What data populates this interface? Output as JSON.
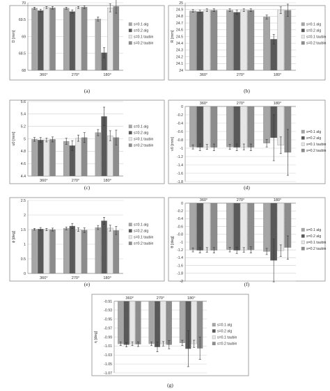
{
  "categories": [
    "360°",
    "270°",
    "180°"
  ],
  "series_names": [
    "s=0.1 alg",
    "s=0.2 alg",
    "s=0.1 taubin",
    "s=0.2 taubin"
  ],
  "series_colors": [
    "#a6a6a6",
    "#595959",
    "#e6e6e6",
    "#8c8c8c"
  ],
  "chart_data": [
    {
      "type": "bar",
      "panel": "(a)",
      "ylabel": "D [mm]",
      "ylim": [
        68,
        70
      ],
      "yticks": [
        68,
        68.5,
        69,
        69.5,
        70
      ],
      "cat_labels_pos": "bottom",
      "series": [
        {
          "name": "s=0.1 alg",
          "values": [
            69.84,
            69.84,
            69.52
          ],
          "errors": [
            0.03,
            0.03,
            0.06
          ]
        },
        {
          "name": "s=0.2 alg",
          "values": [
            69.77,
            69.74,
            68.52
          ],
          "errors": [
            0.04,
            0.05,
            0.15
          ]
        },
        {
          "name": "s=0.1 taubin",
          "values": [
            69.86,
            69.86,
            69.85
          ],
          "errors": [
            0.03,
            0.03,
            0.12
          ]
        },
        {
          "name": "s=0.2 taubin",
          "values": [
            69.85,
            69.87,
            69.89
          ],
          "errors": [
            0.04,
            0.04,
            0.2
          ]
        }
      ]
    },
    {
      "type": "bar",
      "panel": "(b)",
      "ylabel": "R [mm]",
      "ylim": [
        24,
        25
      ],
      "yticks": [
        24,
        24.1,
        24.2,
        24.3,
        24.4,
        24.5,
        24.6,
        24.7,
        24.8,
        24.9,
        25
      ],
      "cat_labels_pos": "bottom",
      "series": [
        {
          "name": "s=0.1 alg",
          "values": [
            24.88,
            24.89,
            24.79
          ],
          "errors": [
            0.02,
            0.02,
            0.03
          ]
        },
        {
          "name": "s=0.2 alg",
          "values": [
            24.87,
            24.86,
            24.46
          ],
          "errors": [
            0.02,
            0.03,
            0.07
          ]
        },
        {
          "name": "s=0.1 taubin",
          "values": [
            24.89,
            24.89,
            24.89
          ],
          "errors": [
            0.02,
            0.02,
            0.05
          ]
        },
        {
          "name": "s=0.2 taubin",
          "values": [
            24.89,
            24.89,
            24.89
          ],
          "errors": [
            0.02,
            0.02,
            0.09
          ]
        }
      ]
    },
    {
      "type": "bar",
      "panel": "(c)",
      "ylabel": "u0 [mm]",
      "ylim": [
        4.4,
        5.6
      ],
      "yticks": [
        4.4,
        4.6,
        4.8,
        5,
        5.2,
        5.4,
        5.6
      ],
      "cat_labels_pos": "bottom",
      "series": [
        {
          "name": "s=0.1 alg",
          "values": [
            4.99,
            4.96,
            5.1
          ],
          "errors": [
            0.03,
            0.05,
            0.05
          ]
        },
        {
          "name": "s=0.2 alg",
          "values": [
            4.98,
            4.89,
            5.36
          ],
          "errors": [
            0.04,
            0.08,
            0.15
          ]
        },
        {
          "name": "s=0.1 taubin",
          "values": [
            4.98,
            5.01,
            5.05
          ],
          "errors": [
            0.03,
            0.05,
            0.08
          ]
        },
        {
          "name": "s=0.2 taubin",
          "values": [
            4.99,
            5.02,
            5.02
          ],
          "errors": [
            0.04,
            0.08,
            0.12
          ]
        }
      ]
    },
    {
      "type": "bar",
      "panel": "(d)",
      "ylabel": "v0 [mm]",
      "ylim": [
        -1.8,
        0
      ],
      "yticks": [
        0,
        -0.2,
        -0.4,
        -0.6,
        -0.8,
        -1,
        -1.2,
        -1.4,
        -1.6,
        -1.8
      ],
      "cat_labels_pos": "top",
      "series": [
        {
          "name": "s=0.1 alg",
          "values": [
            -0.97,
            -0.97,
            -0.88
          ],
          "errors": [
            0.05,
            0.06,
            0.09
          ]
        },
        {
          "name": "s=0.2 alg",
          "values": [
            -0.98,
            -0.98,
            -0.75
          ],
          "errors": [
            0.08,
            0.08,
            0.55
          ]
        },
        {
          "name": "s=0.1 taubin",
          "values": [
            -0.97,
            -0.97,
            -0.93
          ],
          "errors": [
            0.06,
            0.07,
            0.2
          ]
        },
        {
          "name": "s=0.2 taubin",
          "values": [
            -0.98,
            -0.98,
            -1.1
          ],
          "errors": [
            0.08,
            0.08,
            0.55
          ]
        }
      ]
    },
    {
      "type": "bar",
      "panel": "(e)",
      "ylabel": "ϕ [deg]",
      "ylim": [
        0,
        2.5
      ],
      "yticks": [
        0,
        0.5,
        1,
        1.5,
        2,
        2.5
      ],
      "cat_labels_pos": "bottom",
      "series": [
        {
          "name": "s=0.1 alg",
          "values": [
            1.51,
            1.54,
            1.57
          ],
          "errors": [
            0.03,
            0.05,
            0.07
          ]
        },
        {
          "name": "s=0.2 alg",
          "values": [
            1.52,
            1.62,
            1.8
          ],
          "errors": [
            0.05,
            0.09,
            0.12
          ]
        },
        {
          "name": "s=0.1 taubin",
          "values": [
            1.5,
            1.5,
            1.55
          ],
          "errors": [
            0.04,
            0.06,
            0.1
          ]
        },
        {
          "name": "s=0.2 taubin",
          "values": [
            1.5,
            1.48,
            1.47
          ],
          "errors": [
            0.05,
            0.08,
            0.14
          ]
        }
      ]
    },
    {
      "type": "bar",
      "panel": "(f)",
      "ylabel": "θ [deg]",
      "ylim": [
        -2,
        0
      ],
      "yticks": [
        0,
        -0.2,
        -0.4,
        -0.6,
        -0.8,
        -1,
        -1.2,
        -1.4,
        -1.6,
        -1.8,
        -2
      ],
      "cat_labels_pos": "top",
      "series": [
        {
          "name": "s=0.1 alg",
          "values": [
            -1.2,
            -1.19,
            -1.24
          ],
          "errors": [
            0.05,
            0.06,
            0.08
          ]
        },
        {
          "name": "s=0.2 alg",
          "values": [
            -1.21,
            -1.21,
            -1.47
          ],
          "errors": [
            0.07,
            0.08,
            0.55
          ]
        },
        {
          "name": "s=0.1 taubin",
          "values": [
            -1.2,
            -1.2,
            -1.22
          ],
          "errors": [
            0.06,
            0.06,
            0.15
          ]
        },
        {
          "name": "s=0.2 taubin",
          "values": [
            -1.21,
            -1.2,
            -1.14
          ],
          "errors": [
            0.07,
            0.08,
            0.3
          ]
        }
      ]
    },
    {
      "type": "bar",
      "panel": "(g)",
      "ylabel": "η [deg]",
      "ylim": [
        -1.07,
        -0.91
      ],
      "yticks": [
        -0.91,
        -0.93,
        -0.95,
        -0.97,
        -0.99,
        -1.01,
        -1.03,
        -1.05,
        -1.07
      ],
      "cat_labels_pos": "top",
      "series": [
        {
          "name": "s=0.1 alg",
          "values": [
            -1.005,
            -1.005,
            -1.003
          ],
          "errors": [
            0.004,
            0.004,
            0.006
          ]
        },
        {
          "name": "s=0.2 alg",
          "values": [
            -1.007,
            -1.012,
            -1.016
          ],
          "errors": [
            0.005,
            0.011,
            0.04
          ]
        },
        {
          "name": "s=0.1 taubin",
          "values": [
            -1.005,
            -1.005,
            -1.005
          ],
          "errors": [
            0.004,
            0.005,
            0.008
          ]
        },
        {
          "name": "s=0.2 taubin",
          "values": [
            -1.006,
            -1.007,
            -1.015
          ],
          "errors": [
            0.005,
            0.009,
            0.025
          ]
        }
      ]
    }
  ]
}
